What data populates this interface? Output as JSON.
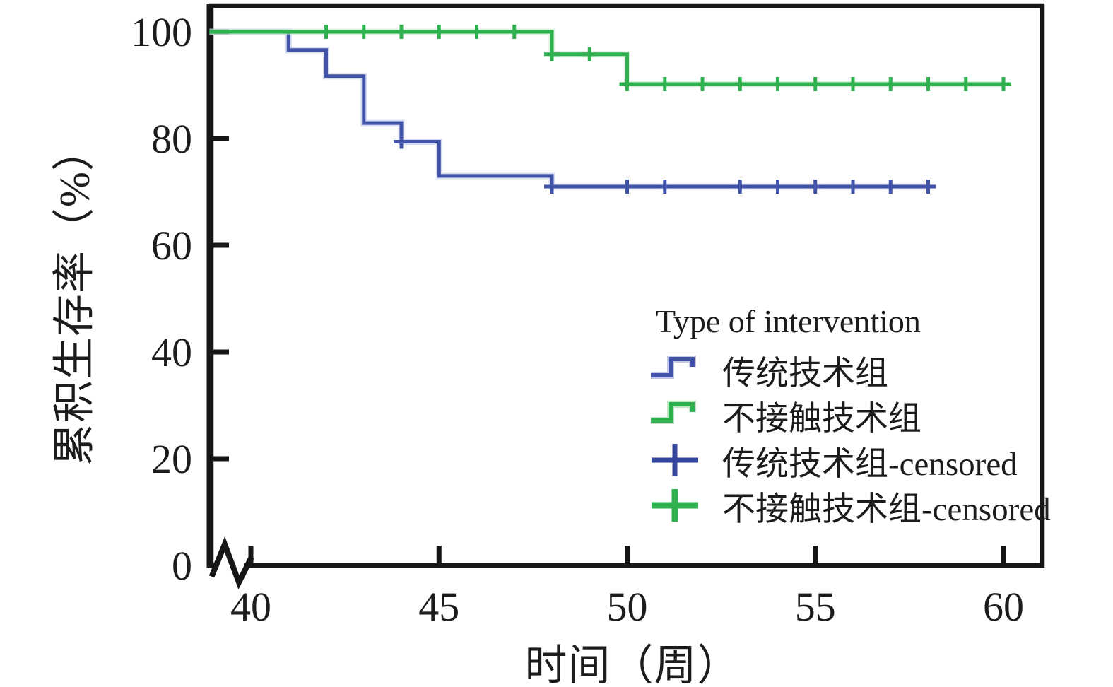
{
  "figure": {
    "x_axis_title": "时间（周）",
    "y_axis_title": "累积生存率（%）"
  },
  "chart_data": {
    "type": "line",
    "subtype": "kaplan-meier-step",
    "title": "",
    "xlabel": "时间（周）",
    "ylabel": "累积生存率（%）",
    "x_ticks": [
      40,
      45,
      50,
      55,
      60
    ],
    "y_ticks": [
      0,
      20,
      40,
      60,
      80,
      100
    ],
    "xlim": [
      38.9,
      61.1
    ],
    "ylim": [
      0,
      105.3
    ],
    "x_axis_break_before_first_tick": true,
    "grid": false,
    "frame_color": "#161616",
    "legend": {
      "position": "inside-right-center",
      "title": "Type of intervention",
      "items": [
        {
          "label": "传统技术组",
          "symbol": "step",
          "color": "#4153a8"
        },
        {
          "label": "不接触技术组",
          "symbol": "step",
          "color": "#2eb14e"
        },
        {
          "label": "传统技术组-censored",
          "symbol": "plus",
          "color": "#34459e"
        },
        {
          "label": "不接触技术组-censored",
          "symbol": "plus",
          "color": "#2eb14e"
        }
      ]
    },
    "series": [
      {
        "name": "传统技术组",
        "color": "#4153a8",
        "halo_color": "#b7c1e6",
        "step_vertices": [
          [
            38.9,
            100
          ],
          [
            41,
            100
          ],
          [
            41,
            96.6
          ],
          [
            42,
            96.6
          ],
          [
            42,
            91.7
          ],
          [
            43,
            91.7
          ],
          [
            43,
            82.9
          ],
          [
            44,
            82.9
          ],
          [
            44,
            79.4
          ],
          [
            45,
            79.4
          ],
          [
            45,
            73
          ],
          [
            48,
            73
          ],
          [
            48,
            71
          ],
          [
            58,
            71
          ]
        ],
        "censored_points": [
          [
            44,
            79.4
          ],
          [
            48,
            71
          ],
          [
            50,
            71
          ],
          [
            51,
            71
          ],
          [
            53,
            71
          ],
          [
            54,
            71
          ],
          [
            55,
            71
          ],
          [
            56,
            71
          ],
          [
            57,
            71
          ],
          [
            58,
            71
          ]
        ]
      },
      {
        "name": "不接触技术组",
        "color": "#2eb14e",
        "halo_color": "#bfe6c6",
        "step_vertices": [
          [
            38.9,
            100
          ],
          [
            48,
            100
          ],
          [
            48,
            95.8
          ],
          [
            50,
            95.8
          ],
          [
            50,
            90.2
          ],
          [
            60,
            90.2
          ]
        ],
        "censored_points": [
          [
            42,
            100
          ],
          [
            43,
            100
          ],
          [
            44,
            100
          ],
          [
            45,
            100
          ],
          [
            46,
            100
          ],
          [
            47,
            100
          ],
          [
            48,
            95.8
          ],
          [
            49,
            95.8
          ],
          [
            50,
            90.2
          ],
          [
            51,
            90.2
          ],
          [
            52,
            90.2
          ],
          [
            53,
            90.2
          ],
          [
            54,
            90.2
          ],
          [
            55,
            90.2
          ],
          [
            56,
            90.2
          ],
          [
            57,
            90.2
          ],
          [
            58,
            90.2
          ],
          [
            59,
            90.2
          ],
          [
            60,
            90.2
          ]
        ]
      }
    ]
  }
}
